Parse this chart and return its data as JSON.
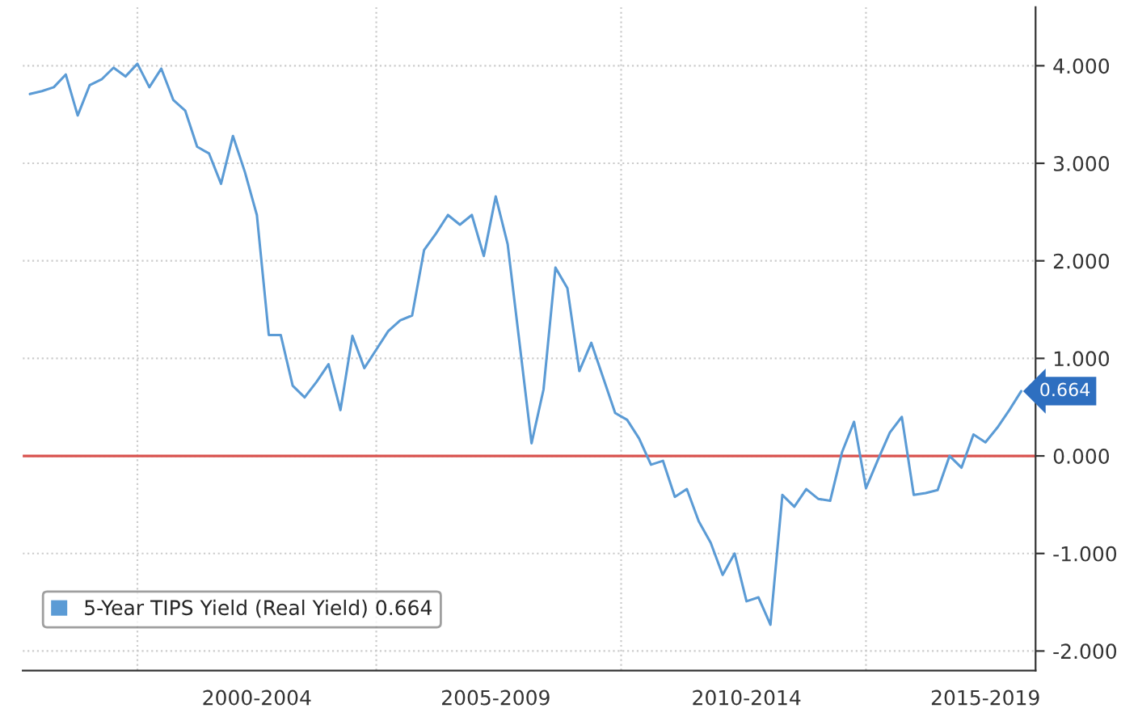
{
  "chart_data": {
    "type": "line",
    "categories": [
      null,
      null,
      null,
      null,
      null,
      null,
      null,
      null,
      null,
      null,
      null,
      null,
      null,
      null,
      null,
      null,
      null,
      null,
      null,
      "2000-2004",
      null,
      null,
      null,
      null,
      null,
      null,
      null,
      null,
      null,
      null,
      null,
      null,
      null,
      null,
      null,
      null,
      null,
      null,
      null,
      "2005-2009",
      null,
      null,
      null,
      null,
      null,
      null,
      null,
      null,
      null,
      null,
      null,
      null,
      null,
      null,
      null,
      null,
      null,
      null,
      null,
      null,
      "2010-2014",
      null,
      null,
      null,
      null,
      null,
      null,
      null,
      null,
      null,
      null,
      null,
      null,
      null,
      null,
      null,
      null,
      null,
      null,
      null,
      "2015-2019",
      null,
      null,
      null
    ],
    "series": [
      {
        "name": "5-Year TIPS Yield (Real Yield) 0.664",
        "color": "#5b9bd5",
        "values": [
          3.71,
          3.74,
          3.78,
          3.91,
          3.49,
          3.8,
          3.86,
          3.98,
          3.89,
          4.02,
          3.78,
          3.97,
          3.65,
          3.54,
          3.17,
          3.1,
          2.79,
          3.28,
          2.91,
          2.47,
          1.24,
          1.24,
          0.72,
          0.6,
          0.76,
          0.94,
          0.47,
          1.23,
          0.9,
          1.09,
          1.28,
          1.39,
          1.44,
          2.11,
          2.28,
          2.47,
          2.37,
          2.47,
          2.05,
          2.66,
          2.17,
          1.15,
          0.13,
          0.68,
          1.93,
          1.72,
          0.87,
          1.16,
          0.8,
          0.44,
          0.37,
          0.18,
          -0.09,
          -0.05,
          -0.42,
          -0.34,
          -0.67,
          -0.89,
          -1.22,
          -1.0,
          -1.49,
          -1.45,
          -1.73,
          -0.4,
          -0.52,
          -0.34,
          -0.44,
          -0.46,
          0.04,
          0.35,
          -0.33,
          -0.04,
          0.24,
          0.4,
          -0.4,
          -0.38,
          -0.35,
          0.0,
          -0.12,
          0.22,
          0.14,
          0.29,
          0.47,
          0.664
        ],
        "value_labels": [
          null,
          null,
          null,
          null,
          null,
          null,
          null,
          null,
          null,
          null,
          null,
          null,
          null,
          null,
          null,
          null,
          null,
          null,
          null,
          null,
          null,
          null,
          null,
          null,
          null,
          null,
          null,
          null,
          null,
          null,
          null,
          null,
          null,
          null,
          null,
          null,
          null,
          null,
          null,
          null,
          null,
          null,
          null,
          null,
          null,
          null,
          null,
          null,
          null,
          null,
          null,
          null,
          null,
          null,
          null,
          null,
          null,
          null,
          null,
          null,
          null,
          null,
          null,
          null,
          null,
          null,
          null,
          null,
          null,
          null,
          null,
          null,
          null,
          null,
          null,
          null,
          null,
          null,
          null,
          null,
          null,
          null,
          null,
          "0.664"
        ]
      }
    ],
    "ylim": [
      -2.2,
      4.6
    ],
    "yticks": [
      {
        "value": -2,
        "label": "-2.000"
      },
      {
        "value": -1,
        "label": "-1.000"
      },
      {
        "value": 0,
        "label": "0.000"
      },
      {
        "value": 1,
        "label": "1.000"
      },
      {
        "value": 2,
        "label": "2.000"
      },
      {
        "value": 3,
        "label": "3.000"
      },
      {
        "value": 4,
        "label": "4.000"
      }
    ],
    "ref_lines": [
      {
        "axis": "y",
        "value": 0,
        "label": null,
        "color": "#d9534f",
        "line_style": "solid"
      }
    ],
    "grid": true,
    "legend": "bottom left",
    "marker": "none",
    "line_style": "solid"
  }
}
